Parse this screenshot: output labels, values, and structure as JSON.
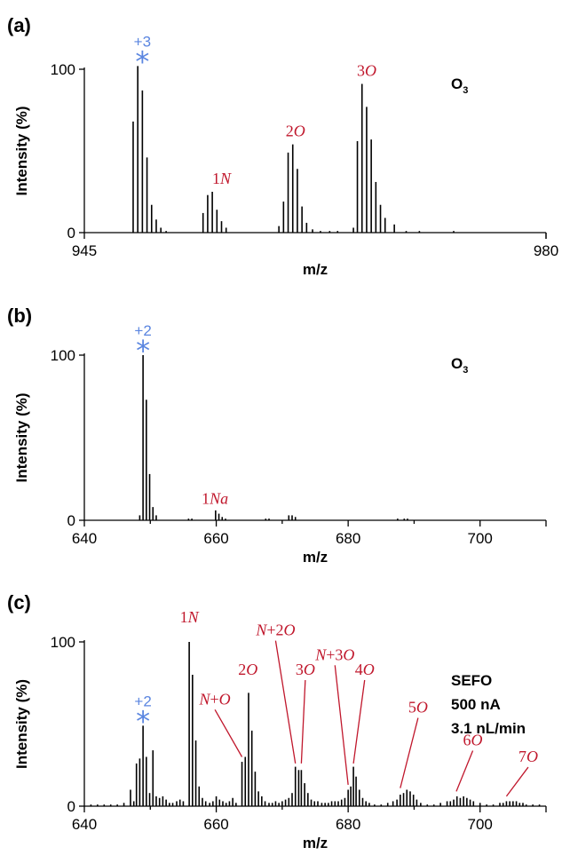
{
  "colors": {
    "accent_blue": "#5b86e0",
    "label_red": "#c0172c",
    "ink": "#000000"
  },
  "chart_data": [
    {
      "type": "bar",
      "panel_label": "(a)",
      "xlabel": "m/z",
      "ylabel": "Intensity (%)",
      "xlim": [
        945,
        980
      ],
      "ylim": [
        0,
        100
      ],
      "xticks": [
        945,
        980
      ],
      "yticks": [
        0,
        100
      ],
      "corner_text": {
        "main": "O",
        "sub": "3"
      },
      "charge_marker": {
        "charge": "+3",
        "symbol": "*",
        "mz": 949.4
      },
      "peak_labels": [
        {
          "num": "1",
          "letter": "N",
          "mz": 955.4,
          "y": 30
        },
        {
          "num": "2",
          "letter": "O",
          "mz": 961.0,
          "y": 59
        },
        {
          "num": "3",
          "letter": "O",
          "mz": 966.4,
          "y": 96
        }
      ],
      "peaks": [
        [
          948.7,
          68
        ],
        [
          949.05,
          102
        ],
        [
          949.4,
          87
        ],
        [
          949.75,
          46
        ],
        [
          950.1,
          17
        ],
        [
          950.45,
          8
        ],
        [
          950.8,
          3
        ],
        [
          951.2,
          1
        ],
        [
          954.0,
          12
        ],
        [
          954.35,
          23
        ],
        [
          954.7,
          25
        ],
        [
          955.05,
          14
        ],
        [
          955.4,
          7
        ],
        [
          955.75,
          3
        ],
        [
          959.75,
          4
        ],
        [
          960.1,
          19
        ],
        [
          960.45,
          49
        ],
        [
          960.8,
          54
        ],
        [
          961.15,
          39
        ],
        [
          961.5,
          16
        ],
        [
          961.85,
          6
        ],
        [
          962.3,
          2
        ],
        [
          962.9,
          1
        ],
        [
          963.6,
          1
        ],
        [
          964.2,
          1
        ],
        [
          965.4,
          3
        ],
        [
          965.7,
          56
        ],
        [
          966.05,
          91
        ],
        [
          966.4,
          77
        ],
        [
          966.75,
          57
        ],
        [
          967.1,
          31
        ],
        [
          967.45,
          17
        ],
        [
          967.8,
          9
        ],
        [
          968.5,
          5
        ],
        [
          969.4,
          1
        ],
        [
          970.4,
          1
        ],
        [
          973.0,
          1
        ]
      ]
    },
    {
      "type": "bar",
      "panel_label": "(b)",
      "xlabel": "m/z",
      "ylabel": "Intensity (%)",
      "xlim": [
        640,
        710
      ],
      "ylim": [
        0,
        100
      ],
      "xticks": [
        640,
        660,
        680,
        700
      ],
      "yticks": [
        0,
        100
      ],
      "corner_text": {
        "main": "O",
        "sub": "3"
      },
      "charge_marker": {
        "charge": "+2",
        "symbol": "*",
        "mz": 648.9
      },
      "peak_labels": [
        {
          "num": "1",
          "letter": "Na",
          "mz": 659.8,
          "y": 10
        }
      ],
      "peaks": [
        [
          648.4,
          3
        ],
        [
          648.9,
          100
        ],
        [
          649.4,
          73
        ],
        [
          649.9,
          28
        ],
        [
          650.4,
          8
        ],
        [
          650.9,
          3
        ],
        [
          655.8,
          1
        ],
        [
          656.3,
          1
        ],
        [
          659.9,
          6
        ],
        [
          660.4,
          4
        ],
        [
          660.9,
          2
        ],
        [
          661.4,
          1
        ],
        [
          667.5,
          1
        ],
        [
          668.0,
          1
        ],
        [
          671.0,
          3
        ],
        [
          671.5,
          3
        ],
        [
          672.0,
          2
        ],
        [
          687.5,
          1
        ],
        [
          688.5,
          1
        ],
        [
          689.0,
          1
        ]
      ]
    },
    {
      "type": "bar",
      "panel_label": "(c)",
      "xlabel": "m/z",
      "ylabel": "Intensity (%)",
      "xlim": [
        640,
        710
      ],
      "ylim": [
        0,
        100
      ],
      "xticks": [
        640,
        660,
        680,
        700
      ],
      "yticks": [
        0,
        100
      ],
      "corner_lines": [
        "SEFO",
        "500 nA",
        "3.1 nL/min"
      ],
      "charge_marker": {
        "charge": "+2",
        "symbol": "*",
        "mz": 648.9
      },
      "peak_labels": [
        {
          "prefix": "",
          "num": "1",
          "letter": "N",
          "mz": 655.9,
          "y": 112,
          "line_to": null
        },
        {
          "prefix": "",
          "num": "2",
          "letter": "O",
          "mz": 664.8,
          "y": 80,
          "line_to": null
        },
        {
          "prefix": "N+",
          "num": "",
          "letter": "O",
          "mz": 659.8,
          "y": 62,
          "line_to": [
            663.9,
            30
          ]
        },
        {
          "prefix": "N+",
          "num": "2",
          "letter": "O",
          "mz": 669.0,
          "y": 104,
          "line_to": [
            672.0,
            26
          ]
        },
        {
          "prefix": "",
          "num": "3",
          "letter": "O",
          "mz": 673.5,
          "y": 80,
          "line_to": [
            672.9,
            26
          ]
        },
        {
          "prefix": "N+",
          "num": "3",
          "letter": "O",
          "mz": 678.0,
          "y": 89,
          "line_to": [
            680.0,
            13
          ]
        },
        {
          "prefix": "",
          "num": "4",
          "letter": "O",
          "mz": 682.5,
          "y": 80,
          "line_to": [
            680.8,
            26
          ]
        },
        {
          "prefix": "",
          "num": "5",
          "letter": "O",
          "mz": 690.6,
          "y": 57,
          "line_to": [
            687.9,
            11
          ]
        },
        {
          "prefix": "",
          "num": "6",
          "letter": "O",
          "mz": 698.9,
          "y": 37,
          "line_to": [
            696.4,
            9
          ]
        },
        {
          "prefix": "",
          "num": "7",
          "letter": "O",
          "mz": 707.3,
          "y": 27,
          "line_to": [
            704.0,
            6
          ]
        }
      ],
      "peaks": [
        [
          641.0,
          1
        ],
        [
          642.0,
          1
        ],
        [
          643.0,
          1
        ],
        [
          644.0,
          1
        ],
        [
          645.0,
          1
        ],
        [
          646.0,
          2
        ],
        [
          647.0,
          10
        ],
        [
          647.5,
          3
        ],
        [
          647.9,
          26
        ],
        [
          648.4,
          29
        ],
        [
          648.9,
          49
        ],
        [
          649.4,
          30
        ],
        [
          649.9,
          8
        ],
        [
          650.4,
          34
        ],
        [
          650.9,
          6
        ],
        [
          651.4,
          5
        ],
        [
          651.9,
          6
        ],
        [
          652.4,
          4
        ],
        [
          652.9,
          2
        ],
        [
          653.4,
          2
        ],
        [
          654.0,
          3
        ],
        [
          654.5,
          4
        ],
        [
          655.0,
          3
        ],
        [
          655.9,
          100
        ],
        [
          656.4,
          80
        ],
        [
          656.9,
          40
        ],
        [
          657.4,
          12
        ],
        [
          657.9,
          5
        ],
        [
          658.4,
          3
        ],
        [
          659.0,
          2
        ],
        [
          659.5,
          3
        ],
        [
          660.0,
          6
        ],
        [
          660.5,
          4
        ],
        [
          661.0,
          3
        ],
        [
          661.5,
          2
        ],
        [
          662.0,
          3
        ],
        [
          662.5,
          5
        ],
        [
          663.0,
          2
        ],
        [
          663.9,
          27
        ],
        [
          664.4,
          30
        ],
        [
          664.9,
          69
        ],
        [
          665.4,
          46
        ],
        [
          665.9,
          21
        ],
        [
          666.4,
          9
        ],
        [
          666.9,
          6
        ],
        [
          667.4,
          3
        ],
        [
          668.0,
          2
        ],
        [
          668.5,
          2
        ],
        [
          669.0,
          3
        ],
        [
          669.5,
          2
        ],
        [
          670.0,
          3
        ],
        [
          670.5,
          4
        ],
        [
          671.0,
          5
        ],
        [
          671.5,
          8
        ],
        [
          672.0,
          24
        ],
        [
          672.5,
          22
        ],
        [
          672.9,
          22
        ],
        [
          673.4,
          14
        ],
        [
          673.9,
          8
        ],
        [
          674.4,
          4
        ],
        [
          674.9,
          3
        ],
        [
          675.4,
          3
        ],
        [
          676.0,
          2
        ],
        [
          676.5,
          2
        ],
        [
          677.0,
          2
        ],
        [
          677.5,
          3
        ],
        [
          678.0,
          3
        ],
        [
          678.5,
          3
        ],
        [
          679.0,
          4
        ],
        [
          679.5,
          5
        ],
        [
          680.0,
          10
        ],
        [
          680.4,
          12
        ],
        [
          680.8,
          24
        ],
        [
          681.2,
          18
        ],
        [
          681.7,
          10
        ],
        [
          682.2,
          5
        ],
        [
          682.7,
          3
        ],
        [
          683.2,
          2
        ],
        [
          684.0,
          1
        ],
        [
          685.0,
          1
        ],
        [
          686.0,
          2
        ],
        [
          686.8,
          3
        ],
        [
          687.4,
          4
        ],
        [
          687.9,
          7
        ],
        [
          688.4,
          8
        ],
        [
          688.9,
          10
        ],
        [
          689.4,
          9
        ],
        [
          689.9,
          7
        ],
        [
          690.4,
          4
        ],
        [
          691.0,
          2
        ],
        [
          692.0,
          1
        ],
        [
          693.0,
          1
        ],
        [
          694.0,
          2
        ],
        [
          695.0,
          3
        ],
        [
          695.5,
          3
        ],
        [
          696.0,
          4
        ],
        [
          696.5,
          6
        ],
        [
          697.0,
          5
        ],
        [
          697.5,
          6
        ],
        [
          698.0,
          5
        ],
        [
          698.5,
          4
        ],
        [
          699.0,
          3
        ],
        [
          700.0,
          2
        ],
        [
          701.0,
          1
        ],
        [
          702.0,
          1
        ],
        [
          703.0,
          2
        ],
        [
          703.5,
          2
        ],
        [
          704.0,
          3
        ],
        [
          704.5,
          3
        ],
        [
          705.0,
          3
        ],
        [
          705.5,
          3
        ],
        [
          706.0,
          2
        ],
        [
          706.5,
          2
        ],
        [
          707.0,
          1
        ],
        [
          708.0,
          1
        ],
        [
          709.0,
          1
        ]
      ]
    }
  ]
}
